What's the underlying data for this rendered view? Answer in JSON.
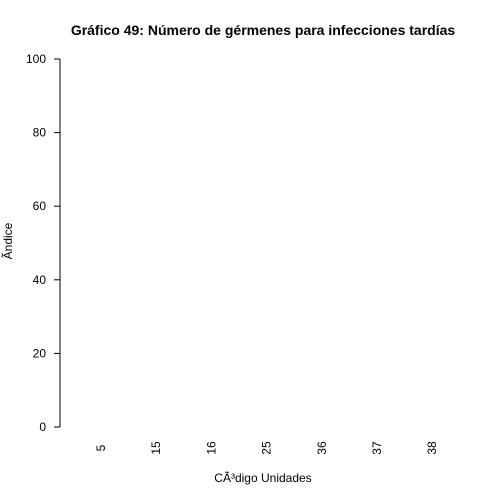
{
  "chart_data": {
    "type": "bar",
    "title": "Gráfico 49: Número de gérmenes para infecciones tardías",
    "xlabel": "CÃ³digo Unidades",
    "ylabel": "Ãndice",
    "categories": [
      "5",
      "15",
      "16",
      "25",
      "36",
      "37",
      "38"
    ],
    "values": [
      0,
      0,
      0,
      0,
      0,
      0,
      0
    ],
    "ylim": [
      0,
      100
    ],
    "yticks": [
      "0",
      "20",
      "40",
      "60",
      "80",
      "100"
    ],
    "grid": false,
    "legend": "none"
  }
}
